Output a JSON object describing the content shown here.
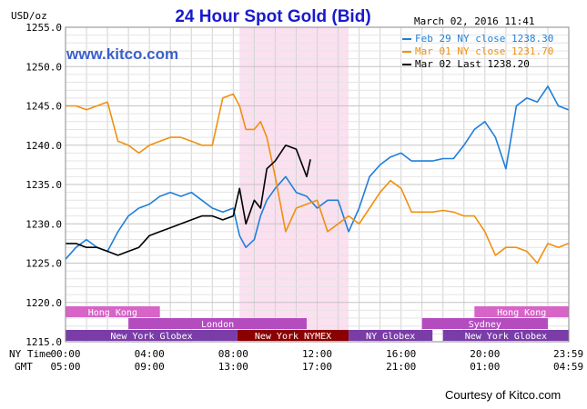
{
  "header": {
    "title": "24 Hour Spot Gold (Bid)",
    "unit_label": "USD/oz",
    "datetime": "March 02, 2016 11:41",
    "site_link": "www.kitco.com",
    "courtesy": "Courtesy of Kitco.com"
  },
  "time_axis": {
    "ny_label": "NY Time",
    "gmt_label": "GMT",
    "ny_ticks": [
      "00:00",
      "04:00",
      "08:00",
      "12:00",
      "16:00",
      "20:00",
      "23:59"
    ],
    "gmt_ticks": [
      "05:00",
      "09:00",
      "13:00",
      "17:00",
      "21:00",
      "01:00",
      "04:59"
    ]
  },
  "chart_data": {
    "type": "line",
    "title": "24 Hour Spot Gold (Bid)",
    "ylabel": "USD/oz",
    "xlabel": "",
    "x_unit": "NY time (hours)",
    "xlim": [
      0,
      24
    ],
    "ylim": [
      1215,
      1255
    ],
    "yticks": [
      1215,
      1220,
      1225,
      1230,
      1235,
      1240,
      1245,
      1250,
      1255
    ],
    "ytick_labels": [
      "1215.0",
      "1220.0",
      "1225.0",
      "1230.0",
      "1235.0",
      "1240.0",
      "1245.0",
      "1250.0",
      "1255.0"
    ],
    "grid": true,
    "legend_position": "top-right",
    "highlight_band": {
      "from": 8.3,
      "to": 13.5,
      "color": "#fbe0f0"
    },
    "series": [
      {
        "name": "Feb 29 NY close 1238.30",
        "color": "#1f7fd9",
        "x": [
          0,
          0.5,
          1,
          1.5,
          2,
          2.5,
          3,
          3.5,
          4,
          4.5,
          5,
          5.5,
          6,
          6.5,
          7,
          7.5,
          8,
          8.3,
          8.6,
          9,
          9.3,
          9.6,
          10,
          10.5,
          11,
          11.5,
          12,
          12.5,
          13,
          13.5,
          14,
          14.5,
          15,
          15.5,
          16,
          16.5,
          17,
          17.5,
          18,
          18.5,
          19,
          19.5,
          20,
          20.5,
          21,
          21.5,
          22,
          22.5,
          23,
          23.5,
          23.98
        ],
        "y": [
          1225.5,
          1227,
          1228,
          1227,
          1226.5,
          1229,
          1231,
          1232,
          1232.5,
          1233.5,
          1234,
          1233.5,
          1234,
          1233,
          1232,
          1231.5,
          1232,
          1228.5,
          1227,
          1228,
          1231,
          1233,
          1234.5,
          1236,
          1234,
          1233.5,
          1232,
          1233,
          1233,
          1229,
          1232,
          1236,
          1237.5,
          1238.5,
          1239,
          1238,
          1238,
          1238,
          1238.3,
          1238.3,
          1240,
          1242,
          1243,
          1241,
          1237,
          1245,
          1246,
          1245.5,
          1247.5,
          1245,
          1244.5
        ]
      },
      {
        "name": "Mar 01 NY close 1231.70",
        "color": "#f0900f",
        "x": [
          0,
          0.5,
          1,
          1.5,
          2,
          2.5,
          3,
          3.5,
          4,
          4.5,
          5,
          5.5,
          6,
          6.5,
          7,
          7.5,
          8,
          8.3,
          8.6,
          9,
          9.3,
          9.6,
          10,
          10.5,
          11,
          11.5,
          12,
          12.5,
          13,
          13.5,
          14,
          14.5,
          15,
          15.5,
          16,
          16.5,
          17,
          17.5,
          18,
          18.5,
          19,
          19.5,
          20,
          20.5,
          21,
          21.5,
          22,
          22.5,
          23,
          23.5,
          23.98
        ],
        "y": [
          1245,
          1245,
          1244.5,
          1245,
          1245.5,
          1240.5,
          1240,
          1239,
          1240,
          1240.5,
          1241,
          1241,
          1240.5,
          1240,
          1240,
          1246,
          1246.5,
          1245,
          1242,
          1242,
          1243,
          1241,
          1236,
          1229,
          1232,
          1232.5,
          1233,
          1229,
          1230,
          1231,
          1230,
          1232,
          1234,
          1235.5,
          1234.5,
          1231.5,
          1231.5,
          1231.5,
          1231.7,
          1231.5,
          1231,
          1231,
          1229,
          1226,
          1227,
          1227,
          1226.5,
          1225,
          1227.5,
          1227,
          1227.5
        ]
      },
      {
        "name": "Mar 02 Last 1238.20",
        "color": "#000000",
        "x": [
          0,
          0.5,
          1,
          1.5,
          2,
          2.5,
          3,
          3.5,
          4,
          4.5,
          5,
          5.5,
          6,
          6.5,
          7,
          7.5,
          8,
          8.3,
          8.6,
          9,
          9.3,
          9.6,
          10,
          10.5,
          11,
          11.5,
          11.68
        ],
        "y": [
          1227.5,
          1227.5,
          1227,
          1227,
          1226.5,
          1226,
          1226.5,
          1227,
          1228.5,
          1229,
          1229.5,
          1230,
          1230.5,
          1231,
          1231,
          1230.5,
          1231,
          1234.5,
          1230,
          1233,
          1232,
          1237,
          1238,
          1240,
          1239.5,
          1236,
          1238.2
        ]
      }
    ],
    "sessions": [
      {
        "name": "Hong Kong",
        "from": 0,
        "to": 4.5,
        "row": 0,
        "color": "#d864c8",
        "text": "#ffffff"
      },
      {
        "name": "Hong Kong",
        "from": 19.5,
        "to": 24,
        "row": 0,
        "color": "#d864c8",
        "text": "#ffffff"
      },
      {
        "name": "London",
        "from": 3,
        "to": 11.5,
        "row": 1,
        "color": "#b44cc0",
        "text": "#ffffff"
      },
      {
        "name": "Sydney",
        "from": 17,
        "to": 23,
        "row": 1,
        "color": "#b44cc0",
        "text": "#ffffff"
      },
      {
        "name": "New York Globex",
        "from": 0,
        "to": 8.2,
        "row": 2,
        "color": "#7a3da8",
        "text": "#ffffff"
      },
      {
        "name": "New York NYMEX",
        "from": 8.2,
        "to": 13.5,
        "row": 2,
        "color": "#8b0000",
        "text": "#ffffff"
      },
      {
        "name": "NY Globex",
        "from": 13.5,
        "to": 17.5,
        "row": 2,
        "color": "#7a3da8",
        "text": "#ffffff"
      },
      {
        "name": "New York Globex",
        "from": 18,
        "to": 24,
        "row": 2,
        "color": "#7a3da8",
        "text": "#ffffff"
      }
    ]
  }
}
